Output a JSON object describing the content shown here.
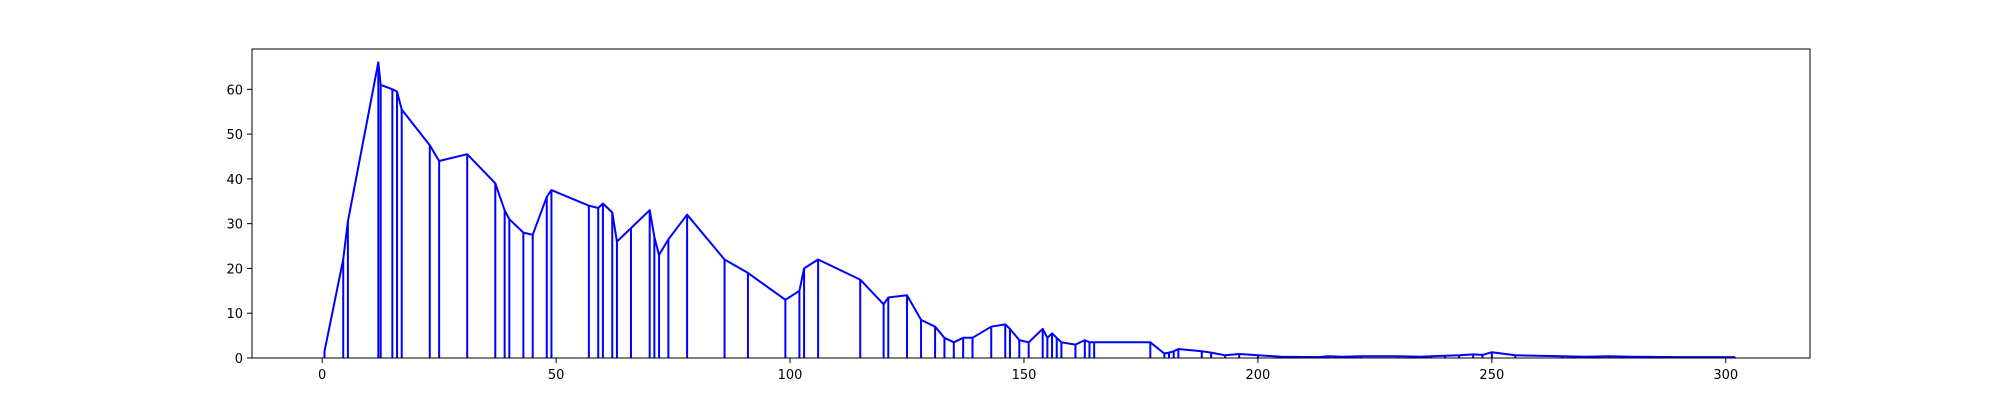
{
  "chart_data": {
    "type": "line",
    "title": "",
    "xlabel": "",
    "ylabel": "",
    "xlim": [
      -15,
      318
    ],
    "ylim": [
      0,
      69
    ],
    "grid": false,
    "legend": "none",
    "xticks": [
      0,
      50,
      100,
      150,
      200,
      250,
      300
    ],
    "yticks": [
      0,
      10,
      20,
      30,
      40,
      50,
      60
    ],
    "line_color": "#0000ff",
    "series": [
      {
        "x": [
          0.5,
          0.5,
          4.5,
          5.5,
          12,
          12.5,
          15,
          16,
          17,
          23,
          25,
          31,
          37,
          39,
          40,
          43,
          45,
          48,
          49,
          57,
          59,
          60,
          62,
          63,
          66,
          70,
          71,
          72,
          74,
          78,
          86,
          91,
          99,
          102,
          103,
          106,
          115,
          120,
          121,
          125,
          128,
          131,
          133,
          135,
          137,
          139,
          143,
          146,
          147,
          149,
          151,
          154,
          155,
          156,
          157,
          158,
          161,
          163,
          164,
          165,
          177,
          180,
          181,
          182,
          183,
          188,
          190,
          193,
          196,
          200,
          205,
          213,
          215,
          218,
          222,
          230,
          235,
          237,
          240,
          243,
          246,
          248,
          250,
          255,
          265,
          270,
          275,
          280,
          290,
          302
        ],
        "y": [
          0,
          1.5,
          22,
          30.5,
          66,
          61,
          60,
          59.5,
          55.5,
          47.5,
          44,
          45.5,
          39,
          33,
          31,
          28,
          27.5,
          36,
          37.5,
          34,
          33.5,
          34.5,
          32.5,
          26,
          29,
          33,
          27,
          23,
          26.5,
          32,
          22,
          19,
          13,
          15,
          20,
          22,
          17.5,
          12,
          13.5,
          14,
          8.5,
          7,
          4.5,
          3.5,
          4.5,
          4.5,
          7,
          7.5,
          6.5,
          4,
          3.5,
          6.5,
          4.5,
          5.5,
          4.5,
          3.5,
          3,
          4,
          3.5,
          3.5,
          3.5,
          1,
          1.2,
          1.5,
          2,
          1.5,
          1.2,
          0.6,
          0.9,
          0.6,
          0.3,
          0.2,
          0.4,
          0.3,
          0.4,
          0.4,
          0.3,
          0.4,
          0.5,
          0.6,
          0.8,
          0.7,
          1.3,
          0.6,
          0.4,
          0.3,
          0.4,
          0.3,
          0.2,
          0.2
        ]
      }
    ]
  }
}
